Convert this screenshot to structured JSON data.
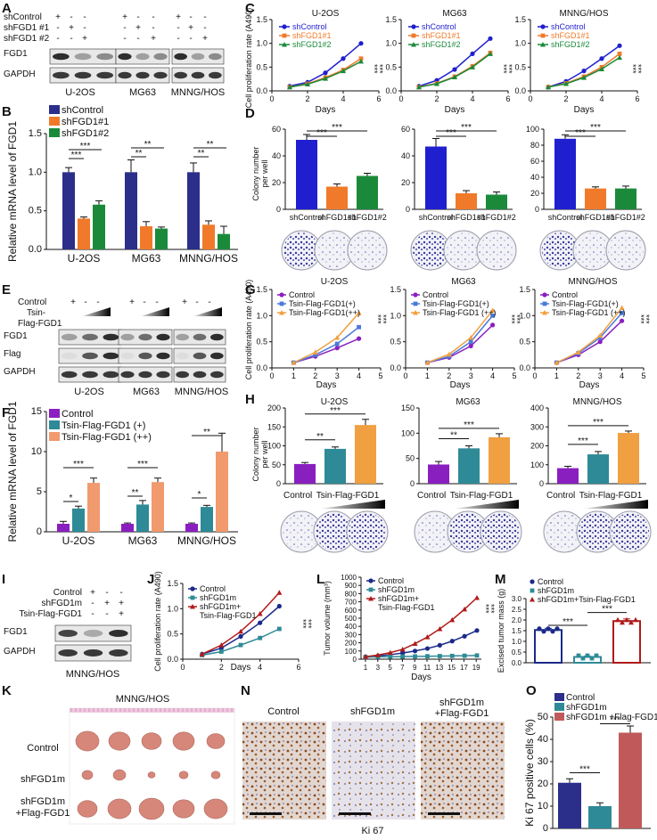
{
  "panels": {
    "A": {
      "letter": "A",
      "row_labels": [
        "shControl",
        "shFGD1 #1",
        "shFGD1 #2"
      ],
      "signs": [
        [
          "+",
          "-",
          "-"
        ],
        [
          "-",
          "+",
          "-"
        ],
        [
          "-",
          "-",
          "+"
        ]
      ],
      "bands": [
        "FGD1",
        "GAPDH"
      ],
      "cell_lines": [
        "U-2OS",
        "MG63",
        "MNNG/HOS"
      ]
    },
    "B": {
      "letter": "B"
    },
    "C": {
      "letter": "C"
    },
    "D": {
      "letter": "D",
      "dish_labels": [
        "U-2OS",
        "MG63",
        "MNNG/HOS"
      ]
    },
    "E": {
      "letter": "E",
      "row_labels": [
        "Control",
        "Tsin-",
        "Flag-FGD1"
      ],
      "signs": [
        "+",
        "-",
        "-"
      ],
      "bands": [
        "FGD1",
        "Flag",
        "GAPDH"
      ],
      "cell_lines": [
        "U-2OS",
        "MG63",
        "MNNG/HOS"
      ]
    },
    "F": {
      "letter": "F"
    },
    "G": {
      "letter": "G"
    },
    "H": {
      "letter": "H",
      "dish_labels": [
        "Control",
        "Tsin-Flag-FGD1"
      ]
    },
    "I": {
      "letter": "I",
      "row_labels": [
        "Control",
        "shFGD1m",
        "Tsin-Flag-FGD1"
      ],
      "signs": [
        [
          "+",
          "-",
          "-"
        ],
        [
          "-",
          "+",
          "+"
        ],
        [
          "-",
          "-",
          "+"
        ]
      ],
      "bands": [
        "FGD1",
        "GAPDH"
      ],
      "cell_line": "MNNG/HOS"
    },
    "J": {
      "letter": "J"
    },
    "K": {
      "letter": "K",
      "title": "MNNG/HOS",
      "row_labels": [
        "Control",
        "shFGD1m",
        "shFGD1m",
        "+Flag-FGD1"
      ]
    },
    "L": {
      "letter": "L"
    },
    "M": {
      "letter": "M"
    },
    "N": {
      "letter": "N",
      "column_labels": [
        "Control",
        "shFGD1m",
        "shFGD1m",
        "+Flag-FGD1"
      ],
      "footer": "Ki 67"
    },
    "O": {
      "letter": "O"
    }
  },
  "colors": {
    "blue": "#1f1fd0",
    "orange": "#f07a2a",
    "green": "#1a8a3a",
    "purple": "#8a1fc0",
    "lightblue": "#4a7ad8",
    "lightorange": "#f0a040",
    "navy": "#2b2f8a",
    "teal": "#2e8a96",
    "salmon": "#f19a6e",
    "darkblue": "#1a2a8a",
    "red": "#b01a1a",
    "rose": "#c05a5a"
  },
  "chart_data": [
    {
      "id": "B",
      "type": "bar",
      "ylabel": "Relative mRNA level of FGD1",
      "categories": [
        "U-2OS",
        "MG63",
        "MNNG/HOS"
      ],
      "ylim": [
        0,
        1.5
      ],
      "yticks": [
        "0.0",
        "0.5",
        "1.0",
        "1.5"
      ],
      "series": [
        {
          "name": "shControl",
          "values": [
            1.0,
            1.0,
            1.0
          ],
          "err": [
            0.06,
            0.16,
            0.12
          ]
        },
        {
          "name": "shFGD1#1",
          "values": [
            0.4,
            0.3,
            0.32
          ],
          "err": [
            0.02,
            0.06,
            0.05
          ]
        },
        {
          "name": "shFGD1#2",
          "values": [
            0.58,
            0.27,
            0.2
          ],
          "err": [
            0.05,
            0.02,
            0.1
          ]
        }
      ],
      "sig": [
        "***",
        "***",
        "**",
        "**",
        "**",
        "**"
      ]
    },
    {
      "id": "C",
      "type": "line",
      "ylabel": "Cell proliferation rate (A490)",
      "xlabel": "Days",
      "xticks": [
        "0",
        "2",
        "4",
        "6"
      ],
      "charts": [
        {
          "title": "U-2OS",
          "x": [
            1,
            2,
            3,
            4,
            5
          ],
          "series": [
            {
              "name": "shControl",
              "values": [
                0.1,
                0.18,
                0.38,
                0.68,
                1.0
              ]
            },
            {
              "name": "shFGD1#1",
              "values": [
                0.08,
                0.15,
                0.28,
                0.44,
                0.68
              ]
            },
            {
              "name": "shFGD1#2",
              "values": [
                0.08,
                0.14,
                0.26,
                0.42,
                0.62
              ]
            }
          ]
        },
        {
          "title": "MG63",
          "x": [
            1,
            2,
            3,
            4,
            5
          ],
          "series": [
            {
              "name": "shControl",
              "values": [
                0.1,
                0.22,
                0.45,
                0.78,
                1.1
              ]
            },
            {
              "name": "shFGD1#1",
              "values": [
                0.08,
                0.16,
                0.3,
                0.52,
                0.8
              ]
            },
            {
              "name": "shFGD1#2",
              "values": [
                0.08,
                0.15,
                0.29,
                0.5,
                0.78
              ]
            }
          ]
        },
        {
          "title": "MNNG/HOS",
          "x": [
            1,
            2,
            3,
            4,
            5
          ],
          "series": [
            {
              "name": "shControl",
              "values": [
                0.08,
                0.2,
                0.42,
                0.68,
                0.95
              ]
            },
            {
              "name": "shFGD1#1",
              "values": [
                0.08,
                0.16,
                0.3,
                0.5,
                0.78
              ]
            },
            {
              "name": "shFGD1#2",
              "values": [
                0.08,
                0.15,
                0.28,
                0.46,
                0.7
              ]
            }
          ]
        }
      ],
      "sig": "***"
    },
    {
      "id": "D",
      "type": "bar",
      "ylabel": "Colony number per well",
      "categories": [
        "shControl",
        "shFGD1#1",
        "shFGD1#2"
      ],
      "charts": [
        {
          "ylim": [
            0,
            60
          ],
          "yticks": [
            "0",
            "20",
            "40",
            "60"
          ],
          "values": [
            52,
            17,
            25
          ],
          "err": [
            4,
            2,
            2
          ]
        },
        {
          "ylim": [
            0,
            60
          ],
          "yticks": [
            "0",
            "20",
            "40",
            "60"
          ],
          "values": [
            47,
            12,
            11
          ],
          "err": [
            6,
            2,
            2
          ]
        },
        {
          "ylim": [
            0,
            100
          ],
          "yticks": [
            "0",
            "20",
            "40",
            "60",
            "80",
            "100"
          ],
          "values": [
            88,
            26,
            26
          ],
          "err": [
            5,
            2,
            3
          ]
        }
      ],
      "sig": "***"
    },
    {
      "id": "F",
      "type": "bar",
      "ylabel": "Relative mRNA level of FGD1",
      "categories": [
        "U-2OS",
        "MG63",
        "MNNG/HOS"
      ],
      "ylim": [
        0,
        15
      ],
      "yticks": [
        "0",
        "5",
        "10",
        "15"
      ],
      "series": [
        {
          "name": "Control",
          "values": [
            1.0,
            1.0,
            1.0
          ],
          "err": [
            0.3,
            0.1,
            0.1
          ]
        },
        {
          "name": "Tsin-Flag-FGD1 (+)",
          "values": [
            2.9,
            3.4,
            3.1
          ],
          "err": [
            0.3,
            0.5,
            0.2
          ]
        },
        {
          "name": "Tsin-Flag-FGD1 (++)",
          "values": [
            6.1,
            6.2,
            10.0
          ],
          "err": [
            0.6,
            0.5,
            2.3
          ]
        }
      ],
      "sig": [
        "*",
        "***",
        "**",
        "***",
        "*",
        "**"
      ]
    },
    {
      "id": "G",
      "type": "line",
      "ylabel": "Cell proliferation rate (A490)",
      "xlabel": "Days",
      "xticks": [
        "0",
        "1",
        "2",
        "3",
        "4",
        "5"
      ],
      "charts": [
        {
          "x": [
            1,
            2,
            3,
            4
          ],
          "series": [
            {
              "name": "Control",
              "values": [
                0.1,
                0.22,
                0.38,
                0.56
              ]
            },
            {
              "name": "Tsin-Flag-FGD1(+)",
              "values": [
                0.1,
                0.25,
                0.46,
                0.78
              ]
            },
            {
              "name": "Tsin-Flag-FGD1(++)",
              "values": [
                0.1,
                0.3,
                0.58,
                1.05
              ]
            }
          ]
        },
        {
          "x": [
            1,
            2,
            3,
            4
          ],
          "series": [
            {
              "name": "Control",
              "values": [
                0.1,
                0.2,
                0.42,
                0.82
              ]
            },
            {
              "name": "Tsin-Flag-FGD1(+)",
              "values": [
                0.1,
                0.22,
                0.5,
                1.0
              ]
            },
            {
              "name": "Tsin-Flag-FGD1 (++)",
              "values": [
                0.1,
                0.26,
                0.58,
                1.1
              ]
            }
          ]
        },
        {
          "x": [
            1,
            2,
            3,
            4
          ],
          "series": [
            {
              "name": "Control",
              "values": [
                0.1,
                0.25,
                0.5,
                0.9
              ]
            },
            {
              "name": "Tsin-Flag-FGD1(+)",
              "values": [
                0.1,
                0.28,
                0.58,
                1.05
              ]
            },
            {
              "name": "Tsin-Flag-FGD1 (++)",
              "values": [
                0.1,
                0.3,
                0.62,
                1.15
              ]
            }
          ]
        }
      ],
      "sig": "***"
    },
    {
      "id": "H",
      "type": "bar",
      "ylabel": "Colony number per well",
      "categories": [
        "Control",
        "Tsin-Flag-FGD1 (+)",
        "Tsin-Flag-FGD1 (++)"
      ],
      "charts": [
        {
          "title": "U-2OS",
          "ylim": [
            0,
            200
          ],
          "yticks": [
            "0",
            "50",
            "100",
            "150",
            "200"
          ],
          "values": [
            52,
            92,
            155
          ],
          "err": [
            4,
            5,
            15
          ],
          "sig": [
            "**",
            "***"
          ]
        },
        {
          "title": "MG63",
          "ylim": [
            0,
            150
          ],
          "yticks": [
            "0",
            "50",
            "100",
            "150"
          ],
          "values": [
            38,
            70,
            92
          ],
          "err": [
            6,
            5,
            7
          ],
          "sig": [
            "**",
            "***"
          ]
        },
        {
          "title": "MNNG/HOS",
          "ylim": [
            0,
            400
          ],
          "yticks": [
            "0",
            "100",
            "200",
            "300",
            "400"
          ],
          "values": [
            82,
            155,
            268
          ],
          "err": [
            10,
            15,
            10
          ],
          "sig": [
            "***",
            "***"
          ]
        }
      ]
    },
    {
      "id": "J",
      "type": "line",
      "ylabel": "Cell proliferation rate (A490)",
      "xlabel": "Days",
      "xticks": [
        "0",
        "2",
        "4",
        "6"
      ],
      "x": [
        1,
        2,
        3,
        4,
        5
      ],
      "series": [
        {
          "name": "Control",
          "values": [
            0.1,
            0.22,
            0.45,
            0.72,
            1.05
          ]
        },
        {
          "name": "shFGD1m",
          "values": [
            0.08,
            0.15,
            0.28,
            0.42,
            0.6
          ]
        },
        {
          "name": "shFGD1m+ Tsin-Flag-FGD1",
          "values": [
            0.1,
            0.28,
            0.55,
            0.9,
            1.32
          ]
        }
      ],
      "sig": "***"
    },
    {
      "id": "L",
      "type": "line",
      "ylabel": "Tumor volume (mm³)",
      "xlabel": "Days",
      "ylim": [
        0,
        1000
      ],
      "yticks": [
        "0",
        "100",
        "200",
        "300",
        "400",
        "500",
        "600",
        "700",
        "800",
        "900",
        "1000"
      ],
      "x": [
        1,
        3,
        5,
        7,
        9,
        11,
        13,
        15,
        17,
        19
      ],
      "xticks": [
        "1",
        "3",
        "5",
        "7",
        "9",
        "11",
        "13",
        "15",
        "17",
        "19"
      ],
      "series": [
        {
          "name": "Control",
          "values": [
            30,
            40,
            55,
            75,
            100,
            130,
            170,
            220,
            280,
            350
          ]
        },
        {
          "name": "shFGD1m",
          "values": [
            25,
            28,
            30,
            32,
            34,
            36,
            38,
            40,
            42,
            45
          ]
        },
        {
          "name": "shFGD1m+ Tsin-Flag-FGD1",
          "values": [
            30,
            50,
            80,
            120,
            190,
            270,
            370,
            480,
            610,
            750
          ]
        }
      ],
      "sig": "***"
    },
    {
      "id": "M",
      "type": "bar",
      "ylabel": "Excised tumor mass (g)",
      "categories": [
        "Control",
        "shFGD1m",
        "shFGD1m+Tsin-Flag-FGD1"
      ],
      "ylim": [
        0,
        3.0
      ],
      "yticks": [
        "0.0",
        "0.5",
        "1.0",
        "1.5",
        "2.0",
        "2.5",
        "3.0"
      ],
      "values": [
        1.53,
        0.27,
        1.95
      ],
      "err": [
        0.08,
        0.04,
        0.1
      ],
      "sig": [
        "***",
        "***"
      ]
    },
    {
      "id": "O",
      "type": "bar",
      "ylabel": "Ki 67 positive cells (%)",
      "categories": [
        "Control",
        "shFGD1m",
        "shFGD1m +Flag-FGD1"
      ],
      "ylim": [
        0,
        50
      ],
      "yticks": [
        "0",
        "10",
        "20",
        "30",
        "40",
        "50"
      ],
      "values": [
        20.5,
        10.0,
        43.0
      ],
      "err": [
        1.8,
        1.5,
        3.0
      ],
      "sig": [
        "***",
        "***"
      ]
    }
  ]
}
